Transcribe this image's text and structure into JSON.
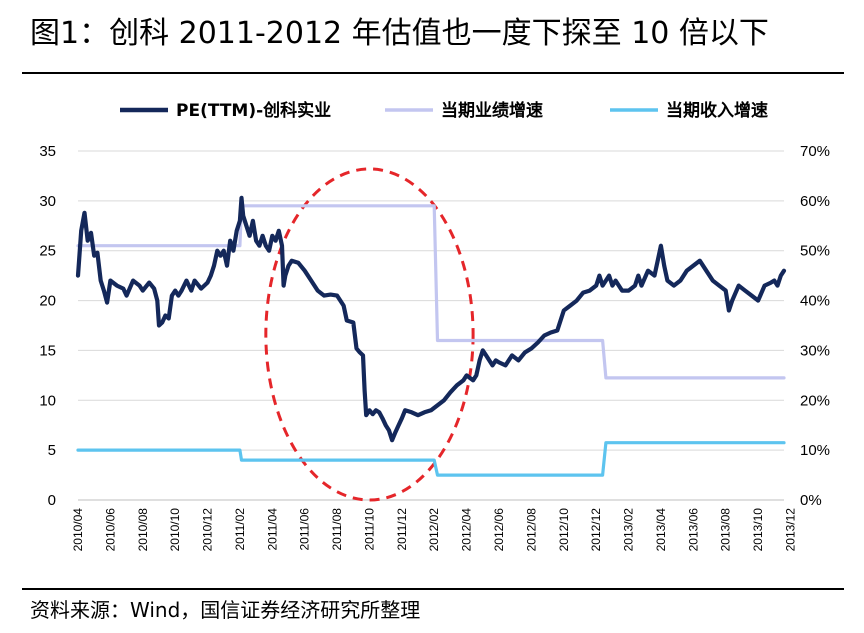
{
  "title": "图1：创科 2011-2012 年估值也一度下探至 10 倍以下",
  "source": "资料来源：Wind，国信证券经济研究所整理",
  "colors": {
    "pe": "#14285a",
    "profit": "#c3c6f0",
    "revenue": "#5dc4ef",
    "ellipse": "#e5262a",
    "grid": "#d9d9d9"
  },
  "chart_data": {
    "type": "line",
    "left_axis": {
      "ylim": [
        0,
        35
      ],
      "ticks": [
        0,
        5,
        10,
        15,
        20,
        25,
        30,
        35
      ],
      "tick_labels": [
        "0",
        "5",
        "10",
        "15",
        "20",
        "25",
        "30",
        "35"
      ]
    },
    "right_axis": {
      "ylim": [
        0,
        70
      ],
      "ticks": [
        0,
        10,
        20,
        30,
        40,
        50,
        60,
        70
      ],
      "tick_labels": [
        "0%",
        "10%",
        "20%",
        "30%",
        "40%",
        "50%",
        "60%",
        "70%"
      ]
    },
    "x_ticks": [
      "2010/04",
      "2010/06",
      "2010/08",
      "2010/10",
      "2010/12",
      "2011/02",
      "2011/04",
      "2011/06",
      "2011/08",
      "2011/10",
      "2011/12",
      "2012/02",
      "2012/04",
      "2012/06",
      "2012/08",
      "2012/10",
      "2012/12",
      "2013/02",
      "2013/04",
      "2013/06",
      "2013/08",
      "2013/10",
      "2013/12"
    ],
    "x_range_months": [
      0,
      21.8
    ],
    "legend": [
      "PE(TTM)-创科实业",
      "当期业绩增速",
      "当期收入增速"
    ],
    "series": [
      {
        "name": "PE(TTM)-创科实业",
        "axis": "left",
        "points": [
          [
            0.0,
            22.5
          ],
          [
            0.1,
            27
          ],
          [
            0.2,
            28.8
          ],
          [
            0.3,
            26
          ],
          [
            0.4,
            26.8
          ],
          [
            0.5,
            24.5
          ],
          [
            0.6,
            24.8
          ],
          [
            0.7,
            22
          ],
          [
            0.8,
            21
          ],
          [
            0.9,
            19.8
          ],
          [
            1.0,
            22
          ],
          [
            1.2,
            21.5
          ],
          [
            1.4,
            21.2
          ],
          [
            1.5,
            20.5
          ],
          [
            1.7,
            22
          ],
          [
            1.9,
            21.5
          ],
          [
            2.0,
            21
          ],
          [
            2.2,
            21.8
          ],
          [
            2.35,
            21.2
          ],
          [
            2.45,
            20
          ],
          [
            2.5,
            17.5
          ],
          [
            2.6,
            17.8
          ],
          [
            2.7,
            18.5
          ],
          [
            2.8,
            18.2
          ],
          [
            2.9,
            20.5
          ],
          [
            3.0,
            21
          ],
          [
            3.1,
            20.5
          ],
          [
            3.2,
            21
          ],
          [
            3.35,
            22
          ],
          [
            3.5,
            21
          ],
          [
            3.6,
            22
          ],
          [
            3.8,
            21.2
          ],
          [
            4.0,
            21.8
          ],
          [
            4.1,
            22.5
          ],
          [
            4.2,
            23.5
          ],
          [
            4.3,
            25
          ],
          [
            4.4,
            24.5
          ],
          [
            4.5,
            25
          ],
          [
            4.6,
            23.5
          ],
          [
            4.7,
            26
          ],
          [
            4.8,
            25
          ],
          [
            4.9,
            27
          ],
          [
            5.0,
            28
          ],
          [
            5.05,
            30.3
          ],
          [
            5.1,
            28.5
          ],
          [
            5.2,
            27.5
          ],
          [
            5.3,
            26.5
          ],
          [
            5.4,
            28
          ],
          [
            5.5,
            26
          ],
          [
            5.6,
            25.5
          ],
          [
            5.7,
            26.5
          ],
          [
            5.8,
            25.5
          ],
          [
            5.9,
            25
          ],
          [
            6.0,
            26.5
          ],
          [
            6.1,
            26
          ],
          [
            6.2,
            27
          ],
          [
            6.3,
            25.5
          ],
          [
            6.35,
            21.5
          ],
          [
            6.4,
            22.5
          ],
          [
            6.5,
            23.5
          ],
          [
            6.6,
            24
          ],
          [
            6.8,
            23.8
          ],
          [
            7.0,
            23
          ],
          [
            7.2,
            22
          ],
          [
            7.4,
            21
          ],
          [
            7.6,
            20.5
          ],
          [
            7.8,
            20.6
          ],
          [
            8.0,
            20.5
          ],
          [
            8.2,
            19.5
          ],
          [
            8.3,
            18
          ],
          [
            8.5,
            17.8
          ],
          [
            8.6,
            15.2
          ],
          [
            8.7,
            14.8
          ],
          [
            8.8,
            14.5
          ],
          [
            8.85,
            11
          ],
          [
            8.9,
            8.5
          ],
          [
            9.0,
            9
          ],
          [
            9.1,
            8.6
          ],
          [
            9.2,
            9
          ],
          [
            9.3,
            8.8
          ],
          [
            9.4,
            8.2
          ],
          [
            9.5,
            7.5
          ],
          [
            9.6,
            7
          ],
          [
            9.7,
            6
          ],
          [
            9.8,
            6.8
          ],
          [
            9.9,
            7.5
          ],
          [
            10.0,
            8.2
          ],
          [
            10.1,
            9
          ],
          [
            10.3,
            8.8
          ],
          [
            10.5,
            8.5
          ],
          [
            10.7,
            8.8
          ],
          [
            10.9,
            9
          ],
          [
            11.1,
            9.5
          ],
          [
            11.3,
            10
          ],
          [
            11.5,
            10.8
          ],
          [
            11.7,
            11.5
          ],
          [
            11.9,
            12
          ],
          [
            12.0,
            12.5
          ],
          [
            12.2,
            12
          ],
          [
            12.3,
            12.5
          ],
          [
            12.4,
            14
          ],
          [
            12.5,
            15
          ],
          [
            12.6,
            14.5
          ],
          [
            12.7,
            14
          ],
          [
            12.8,
            13.5
          ],
          [
            12.9,
            14
          ],
          [
            13.0,
            13.8
          ],
          [
            13.2,
            13.5
          ],
          [
            13.4,
            14.5
          ],
          [
            13.6,
            14
          ],
          [
            13.8,
            14.8
          ],
          [
            14.0,
            15.2
          ],
          [
            14.2,
            15.8
          ],
          [
            14.4,
            16.5
          ],
          [
            14.6,
            16.8
          ],
          [
            14.8,
            17
          ],
          [
            15.0,
            19
          ],
          [
            15.2,
            19.5
          ],
          [
            15.4,
            20
          ],
          [
            15.6,
            20.8
          ],
          [
            15.8,
            21
          ],
          [
            16.0,
            21.5
          ],
          [
            16.1,
            22.5
          ],
          [
            16.2,
            21.5
          ],
          [
            16.4,
            22.5
          ],
          [
            16.5,
            21.5
          ],
          [
            16.6,
            22
          ],
          [
            16.8,
            21
          ],
          [
            17.0,
            21
          ],
          [
            17.2,
            21.5
          ],
          [
            17.3,
            22.5
          ],
          [
            17.4,
            21.5
          ],
          [
            17.6,
            23
          ],
          [
            17.8,
            22.5
          ],
          [
            17.9,
            24
          ],
          [
            18.0,
            25.5
          ],
          [
            18.1,
            23.5
          ],
          [
            18.2,
            22
          ],
          [
            18.4,
            21.5
          ],
          [
            18.6,
            22
          ],
          [
            18.8,
            23
          ],
          [
            19.0,
            23.5
          ],
          [
            19.2,
            24
          ],
          [
            19.4,
            23
          ],
          [
            19.6,
            22
          ],
          [
            19.8,
            21.5
          ],
          [
            20.0,
            21
          ],
          [
            20.1,
            19
          ],
          [
            20.2,
            20
          ],
          [
            20.4,
            21.5
          ],
          [
            20.6,
            21
          ],
          [
            20.8,
            20.5
          ],
          [
            21.0,
            20
          ],
          [
            21.2,
            21.5
          ],
          [
            21.4,
            21.8
          ],
          [
            21.5,
            22
          ],
          [
            21.6,
            21.5
          ],
          [
            21.7,
            22.5
          ],
          [
            21.8,
            23
          ]
        ]
      },
      {
        "name": "当期业绩增速",
        "axis": "right",
        "points": [
          [
            0.0,
            51
          ],
          [
            5.0,
            51
          ],
          [
            5.05,
            59
          ],
          [
            11.0,
            59
          ],
          [
            11.1,
            32
          ],
          [
            16.2,
            32
          ],
          [
            16.3,
            24.5
          ],
          [
            21.8,
            24.5
          ]
        ]
      },
      {
        "name": "当期收入增速",
        "axis": "right",
        "points": [
          [
            0.0,
            10
          ],
          [
            5.0,
            10
          ],
          [
            5.05,
            8
          ],
          [
            11.0,
            8
          ],
          [
            11.1,
            5
          ],
          [
            16.2,
            5
          ],
          [
            16.3,
            11.5
          ],
          [
            21.8,
            11.5
          ]
        ]
      }
    ],
    "annotation": {
      "shape": "dashed-ellipse",
      "x_center_months": 9.0,
      "x_radius_months": 3.2,
      "y_center": 16.6,
      "y_radius": 16.6
    }
  }
}
